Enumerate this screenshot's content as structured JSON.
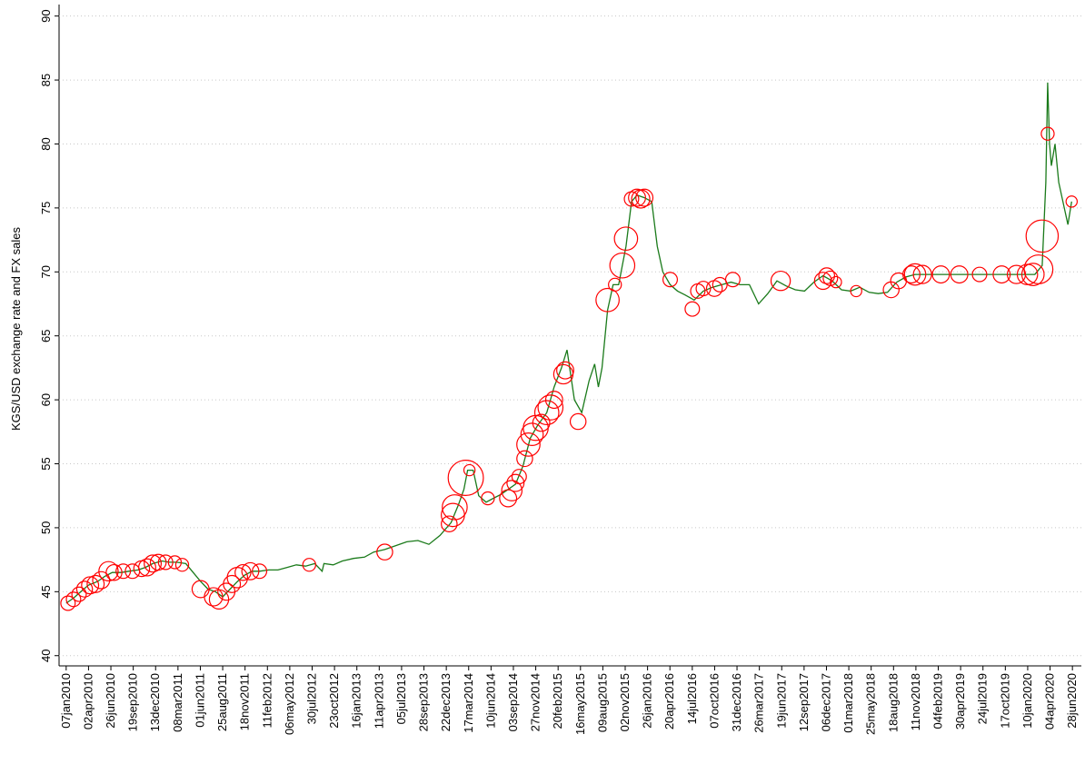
{
  "chart_data": {
    "type": "line",
    "y_label": "KGS/USD exchange rate and FX sales",
    "xlim": [
      "2009-12-11",
      "2020-08-01"
    ],
    "ylim": [
      39.2,
      90.9
    ],
    "yticks": [
      40,
      45,
      50,
      55,
      60,
      65,
      70,
      75,
      80,
      85,
      90
    ],
    "grid": true,
    "xticks": [
      {
        "value": "2010-01-07",
        "label": "07jan2010"
      },
      {
        "value": "2010-04-02",
        "label": "02apr2010"
      },
      {
        "value": "2010-06-26",
        "label": "26jun2010"
      },
      {
        "value": "2010-09-19",
        "label": "19sep2010"
      },
      {
        "value": "2010-12-13",
        "label": "13dec2010"
      },
      {
        "value": "2011-03-08",
        "label": "08mar2011"
      },
      {
        "value": "2011-06-01",
        "label": "01jun2011"
      },
      {
        "value": "2011-08-25",
        "label": "25aug2011"
      },
      {
        "value": "2011-11-18",
        "label": "18nov2011"
      },
      {
        "value": "2012-02-11",
        "label": "11feb2012"
      },
      {
        "value": "2012-05-06",
        "label": "06may2012"
      },
      {
        "value": "2012-07-30",
        "label": "30jul2012"
      },
      {
        "value": "2012-10-23",
        "label": "23oct2012"
      },
      {
        "value": "2013-01-16",
        "label": "16jan2013"
      },
      {
        "value": "2013-04-11",
        "label": "11apr2013"
      },
      {
        "value": "2013-07-05",
        "label": "05jul2013"
      },
      {
        "value": "2013-09-28",
        "label": "28sep2013"
      },
      {
        "value": "2013-12-22",
        "label": "22dec2013"
      },
      {
        "value": "2014-03-17",
        "label": "17mar2014"
      },
      {
        "value": "2014-06-10",
        "label": "10jun2014"
      },
      {
        "value": "2014-09-03",
        "label": "03sep2014"
      },
      {
        "value": "2014-11-27",
        "label": "27nov2014"
      },
      {
        "value": "2015-02-20",
        "label": "20feb2015"
      },
      {
        "value": "2015-05-16",
        "label": "16may2015"
      },
      {
        "value": "2015-08-09",
        "label": "09aug2015"
      },
      {
        "value": "2015-11-02",
        "label": "02nov2015"
      },
      {
        "value": "2016-01-26",
        "label": "26jan2016"
      },
      {
        "value": "2016-04-20",
        "label": "20apr2016"
      },
      {
        "value": "2016-07-14",
        "label": "14jul2016"
      },
      {
        "value": "2016-10-07",
        "label": "07oct2016"
      },
      {
        "value": "2016-12-31",
        "label": "31dec2016"
      },
      {
        "value": "2017-03-26",
        "label": "26mar2017"
      },
      {
        "value": "2017-06-19",
        "label": "19jun2017"
      },
      {
        "value": "2017-09-12",
        "label": "12sep2017"
      },
      {
        "value": "2017-12-06",
        "label": "06dec2017"
      },
      {
        "value": "2018-03-01",
        "label": "01mar2018"
      },
      {
        "value": "2018-05-25",
        "label": "25may2018"
      },
      {
        "value": "2018-08-18",
        "label": "18aug2018"
      },
      {
        "value": "2018-11-11",
        "label": "11nov2018"
      },
      {
        "value": "2019-02-04",
        "label": "04feb2019"
      },
      {
        "value": "2019-04-30",
        "label": "30apr2019"
      },
      {
        "value": "2019-07-24",
        "label": "24jul2019"
      },
      {
        "value": "2019-10-17",
        "label": "17oct2019"
      },
      {
        "value": "2020-01-10",
        "label": "10jan2020"
      },
      {
        "value": "2020-04-04",
        "label": "04apr2020"
      },
      {
        "value": "2020-06-28",
        "label": "28jun2020"
      }
    ],
    "series": [
      {
        "type": "line",
        "color": "#1a7a1a",
        "x": [
          "2010-01-07",
          "2010-02-04",
          "2010-03-04",
          "2010-04-01",
          "2010-05-06",
          "2010-06-03",
          "2010-07-01",
          "2010-08-05",
          "2010-09-02",
          "2010-10-07",
          "2010-11-04",
          "2010-12-02",
          "2011-01-06",
          "2011-02-03",
          "2011-03-03",
          "2011-04-07",
          "2011-05-05",
          "2011-06-02",
          "2011-06-30",
          "2011-07-28",
          "2011-08-25",
          "2011-09-22",
          "2011-10-20",
          "2011-11-17",
          "2011-12-15",
          "2012-01-12",
          "2012-02-16",
          "2012-03-22",
          "2012-04-26",
          "2012-05-31",
          "2012-07-05",
          "2012-08-09",
          "2012-09-06",
          "2012-09-13",
          "2012-10-18",
          "2012-11-22",
          "2013-01-03",
          "2013-02-14",
          "2013-03-21",
          "2013-05-02",
          "2013-06-13",
          "2013-07-25",
          "2013-09-05",
          "2013-10-17",
          "2013-11-28",
          "2014-01-09",
          "2014-02-06",
          "2014-02-27",
          "2014-03-13",
          "2014-04-03",
          "2014-04-24",
          "2014-05-22",
          "2014-06-19",
          "2014-07-17",
          "2014-08-14",
          "2014-09-11",
          "2014-10-09",
          "2014-11-06",
          "2014-12-04",
          "2015-01-08",
          "2015-02-05",
          "2015-03-05",
          "2015-03-26",
          "2015-04-23",
          "2015-05-21",
          "2015-06-18",
          "2015-07-09",
          "2015-07-23",
          "2015-08-06",
          "2015-08-27",
          "2015-09-17",
          "2015-10-08",
          "2015-11-05",
          "2015-11-26",
          "2015-12-17",
          "2016-01-14",
          "2016-02-11",
          "2016-03-03",
          "2016-03-24",
          "2016-04-21",
          "2016-05-19",
          "2016-06-16",
          "2016-07-21",
          "2016-08-25",
          "2016-09-29",
          "2016-11-03",
          "2016-12-08",
          "2017-01-12",
          "2017-02-16",
          "2017-03-23",
          "2017-04-27",
          "2017-06-01",
          "2017-07-06",
          "2017-08-10",
          "2017-09-14",
          "2017-10-19",
          "2017-11-23",
          "2017-12-28",
          "2018-02-01",
          "2018-03-08",
          "2018-04-12",
          "2018-05-17",
          "2018-06-21",
          "2018-07-26",
          "2018-08-30",
          "2018-10-04",
          "2018-11-08",
          "2018-12-13",
          "2019-01-24",
          "2019-03-07",
          "2019-04-18",
          "2019-05-30",
          "2019-07-11",
          "2019-08-22",
          "2019-10-03",
          "2019-11-14",
          "2019-12-26",
          "2020-02-06",
          "2020-03-05",
          "2020-03-19",
          "2020-03-26",
          "2020-04-02",
          "2020-04-09",
          "2020-04-23",
          "2020-05-07",
          "2020-05-28",
          "2020-06-11",
          "2020-06-25"
        ],
        "values": [
          44.1,
          44.5,
          45.0,
          45.5,
          45.8,
          46.2,
          46.5,
          46.5,
          46.6,
          46.7,
          46.9,
          47.2,
          47.4,
          47.3,
          47.3,
          47.2,
          46.5,
          45.8,
          45.2,
          45.0,
          44.6,
          45.2,
          45.8,
          46.3,
          46.6,
          46.6,
          46.7,
          46.7,
          46.9,
          47.1,
          47.0,
          47.2,
          46.6,
          47.2,
          47.1,
          47.4,
          47.6,
          47.7,
          48.1,
          48.3,
          48.6,
          48.9,
          49.0,
          48.7,
          49.4,
          50.4,
          51.8,
          53.0,
          54.5,
          54.5,
          52.5,
          52.0,
          52.3,
          52.6,
          53.0,
          53.4,
          54.8,
          57.0,
          58.0,
          59.0,
          61.0,
          62.5,
          63.9,
          60.0,
          59.0,
          61.5,
          62.8,
          61.0,
          62.5,
          67.0,
          69.0,
          69.0,
          72.0,
          75.5,
          76.0,
          75.8,
          75.5,
          72.0,
          70.0,
          69.0,
          68.5,
          68.2,
          67.8,
          68.5,
          68.8,
          69.0,
          69.2,
          69.0,
          69.0,
          67.5,
          68.3,
          69.3,
          68.9,
          68.6,
          68.5,
          69.2,
          69.7,
          69.3,
          68.6,
          68.5,
          68.8,
          68.4,
          68.3,
          68.4,
          69.2,
          69.6,
          69.8,
          69.8,
          69.8,
          69.8,
          69.8,
          69.8,
          69.8,
          69.8,
          69.8,
          69.8,
          69.8,
          69.8,
          70.5,
          77.0,
          84.8,
          80.0,
          78.3,
          80.0,
          77.0,
          75.0,
          73.7,
          75.5
        ]
      },
      {
        "type": "scatter",
        "color": "#ff0000",
        "x": [
          "2010-01-14",
          "2010-02-04",
          "2010-02-25",
          "2010-03-18",
          "2010-04-08",
          "2010-04-29",
          "2010-05-20",
          "2010-06-17",
          "2010-07-08",
          "2010-08-12",
          "2010-09-16",
          "2010-10-21",
          "2010-11-11",
          "2010-12-02",
          "2010-12-23",
          "2011-01-20",
          "2011-02-24",
          "2011-03-24",
          "2011-06-02",
          "2011-07-21",
          "2011-08-11",
          "2011-09-08",
          "2011-09-29",
          "2011-10-20",
          "2011-11-10",
          "2011-12-08",
          "2012-01-12",
          "2012-07-19",
          "2013-05-02",
          "2014-01-02",
          "2014-01-16",
          "2014-01-23",
          "2014-03-06",
          "2014-03-20",
          "2014-05-29",
          "2014-08-14",
          "2014-08-28",
          "2014-09-11",
          "2014-09-25",
          "2014-10-16",
          "2014-10-30",
          "2014-11-13",
          "2014-11-27",
          "2014-12-18",
          "2015-01-08",
          "2015-01-22",
          "2015-02-05",
          "2015-03-12",
          "2015-03-19",
          "2015-05-07",
          "2015-08-27",
          "2015-09-24",
          "2015-10-22",
          "2015-11-05",
          "2015-11-26",
          "2015-12-17",
          "2015-12-31",
          "2016-01-14",
          "2016-04-21",
          "2016-07-14",
          "2016-08-04",
          "2016-08-25",
          "2016-10-06",
          "2016-10-27",
          "2016-12-15",
          "2017-06-15",
          "2017-11-23",
          "2017-12-07",
          "2017-12-21",
          "2018-01-11",
          "2018-03-29",
          "2018-08-09",
          "2018-09-06",
          "2018-10-25",
          "2018-11-08",
          "2018-12-06",
          "2019-02-14",
          "2019-04-25",
          "2019-07-11",
          "2019-10-03",
          "2019-11-28",
          "2020-01-09",
          "2020-01-30",
          "2020-02-20",
          "2020-03-05",
          "2020-03-26",
          "2020-06-25"
        ],
        "values": [
          44.1,
          44.4,
          44.8,
          45.2,
          45.5,
          45.6,
          45.9,
          46.6,
          46.5,
          46.6,
          46.6,
          46.8,
          46.9,
          47.2,
          47.3,
          47.3,
          47.3,
          47.1,
          45.2,
          44.6,
          44.4,
          45.0,
          45.6,
          46.1,
          46.5,
          46.6,
          46.6,
          47.1,
          48.1,
          50.3,
          51.0,
          51.6,
          53.9,
          54.5,
          52.3,
          52.3,
          52.9,
          53.5,
          54.0,
          55.4,
          56.5,
          57.3,
          57.8,
          58.2,
          59.0,
          59.4,
          60.0,
          62.0,
          62.3,
          58.3,
          67.8,
          69.0,
          70.5,
          72.6,
          75.7,
          75.8,
          75.7,
          75.8,
          69.4,
          67.1,
          68.5,
          68.7,
          68.7,
          69.0,
          69.4,
          69.3,
          69.3,
          69.7,
          69.5,
          69.2,
          68.5,
          68.6,
          69.3,
          69.8,
          69.8,
          69.8,
          69.8,
          69.8,
          69.8,
          69.8,
          69.8,
          69.8,
          69.8,
          70.2,
          72.8,
          80.8,
          75.5
        ],
        "sizes": [
          10,
          10,
          10,
          12,
          14,
          14,
          14,
          18,
          12,
          10,
          10,
          12,
          14,
          14,
          12,
          10,
          8,
          8,
          14,
          16,
          18,
          14,
          14,
          20,
          12,
          14,
          10,
          8,
          12,
          12,
          26,
          30,
          60,
          6,
          8,
          14,
          20,
          14,
          10,
          12,
          26,
          24,
          30,
          14,
          28,
          30,
          14,
          18,
          14,
          12,
          26,
          8,
          30,
          26,
          10,
          14,
          16,
          14,
          10,
          10,
          10,
          10,
          12,
          10,
          10,
          18,
          14,
          12,
          10,
          6,
          6,
          12,
          12,
          14,
          22,
          16,
          14,
          14,
          10,
          14,
          16,
          20,
          24,
          40,
          50,
          8,
          6
        ]
      }
    ]
  }
}
